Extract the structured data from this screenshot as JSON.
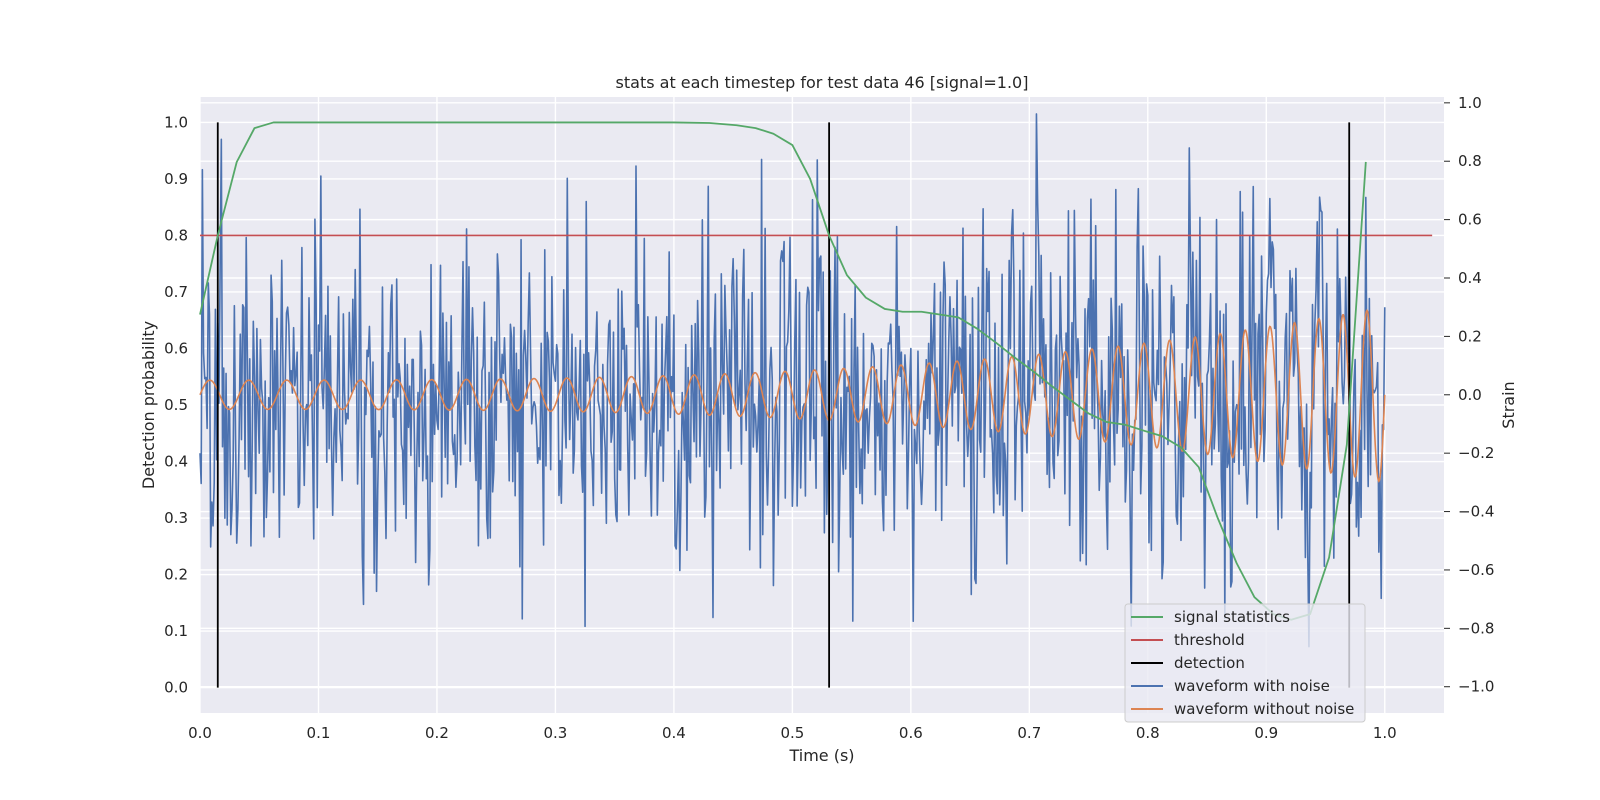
{
  "chart_data": {
    "type": "line",
    "title": "stats at each timestep for test data 46 [signal=1.0]",
    "xlabel": "Time (s)",
    "ylabel": "Detection probability",
    "ylabel_right": "Strain",
    "xlim": [
      0.0,
      1.05
    ],
    "ylim": [
      -0.045,
      1.045
    ],
    "ylim_right": [
      -1.09,
      1.02
    ],
    "x_ticks": [
      "0.0",
      "0.1",
      "0.2",
      "0.3",
      "0.4",
      "0.5",
      "0.6",
      "0.7",
      "0.8",
      "0.9",
      "1.0"
    ],
    "y_ticks": [
      "0.0",
      "0.1",
      "0.2",
      "0.3",
      "0.4",
      "0.5",
      "0.6",
      "0.7",
      "0.8",
      "0.9",
      "1.0"
    ],
    "y_ticks_right": [
      "−1.0",
      "−0.8",
      "−0.6",
      "−0.4",
      "−0.2",
      "0.0",
      "0.2",
      "0.4",
      "0.6",
      "0.8",
      "1.0"
    ],
    "grid": true,
    "legend_position": "lower-right",
    "threshold": 0.8,
    "detections": [
      0.015,
      0.531,
      0.97
    ],
    "series": [
      {
        "name": "signal statistics",
        "axis": "left",
        "color": "#55a868",
        "x": [
          0.0,
          0.015,
          0.031,
          0.046,
          0.062,
          0.077,
          0.1,
          0.2,
          0.3,
          0.4,
          0.43,
          0.453,
          0.469,
          0.484,
          0.5,
          0.515,
          0.531,
          0.546,
          0.562,
          0.578,
          0.593,
          0.609,
          0.625,
          0.64,
          0.656,
          0.672,
          0.687,
          0.703,
          0.718,
          0.734,
          0.75,
          0.765,
          0.781,
          0.796,
          0.812,
          0.828,
          0.843,
          0.859,
          0.875,
          0.89,
          0.906,
          0.921,
          0.937,
          0.953,
          0.968,
          0.984
        ],
        "values": [
          0.66,
          0.8,
          0.93,
          0.99,
          1.0,
          1.0,
          1.0,
          1.0,
          1.0,
          1.0,
          0.999,
          0.995,
          0.99,
          0.98,
          0.96,
          0.9,
          0.8,
          0.73,
          0.69,
          0.67,
          0.665,
          0.665,
          0.66,
          0.655,
          0.635,
          0.61,
          0.585,
          0.56,
          0.535,
          0.51,
          0.485,
          0.47,
          0.465,
          0.455,
          0.445,
          0.425,
          0.39,
          0.3,
          0.22,
          0.16,
          0.13,
          0.12,
          0.13,
          0.23,
          0.43,
          0.93
        ]
      },
      {
        "name": "threshold",
        "axis": "left",
        "color": "#c44e52",
        "x": [
          0.0,
          1.04
        ],
        "values": [
          0.8,
          0.8
        ]
      },
      {
        "name": "detection",
        "axis": "left",
        "color": "#000000",
        "x": [
          0.015,
          0.531,
          0.97
        ],
        "values": [
          1.0,
          1.0,
          1.0
        ]
      },
      {
        "name": "waveform with noise",
        "axis": "right",
        "color": "#4c72b0",
        "x": [
          0.0,
          1.0
        ],
        "values": [
          -0.2,
          0.3
        ],
        "noise_std": 0.3,
        "samples": 1000
      },
      {
        "name": "waveform without noise",
        "axis": "right",
        "color": "#dd8452",
        "x": [
          0.0,
          1.0
        ],
        "values": [
          0.0,
          0.0
        ],
        "amplitude_start": 0.05,
        "amplitude_end": 0.3,
        "cycles": 40
      }
    ]
  }
}
